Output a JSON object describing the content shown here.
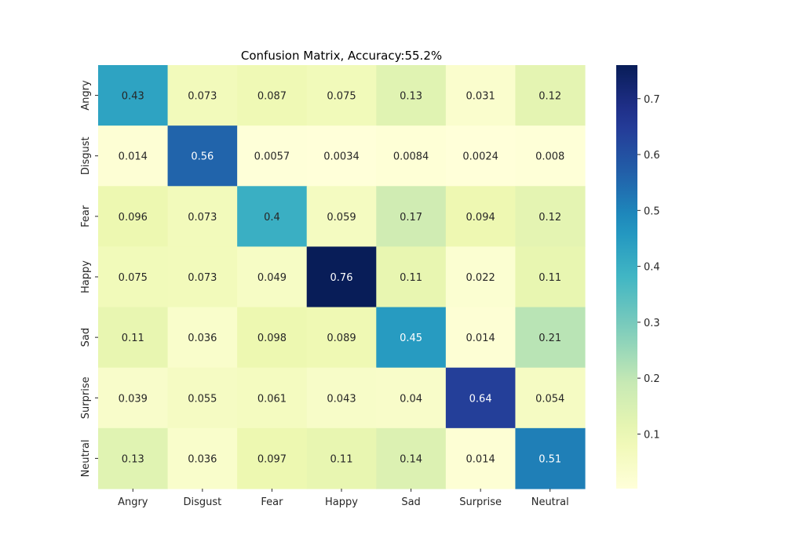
{
  "chart_data": {
    "type": "heatmap",
    "title": "Confusion Matrix, Accuracy:55.2%",
    "xlabel": "",
    "ylabel": "",
    "x_categories": [
      "Angry",
      "Disgust",
      "Fear",
      "Happy",
      "Sad",
      "Surprise",
      "Neutral"
    ],
    "y_categories": [
      "Angry",
      "Disgust",
      "Fear",
      "Happy",
      "Sad",
      "Surprise",
      "Neutral"
    ],
    "values": [
      [
        0.43,
        0.073,
        0.087,
        0.075,
        0.13,
        0.031,
        0.12
      ],
      [
        0.014,
        0.56,
        0.0057,
        0.0034,
        0.0084,
        0.0024,
        0.008
      ],
      [
        0.096,
        0.073,
        0.4,
        0.059,
        0.17,
        0.094,
        0.12
      ],
      [
        0.075,
        0.073,
        0.049,
        0.76,
        0.11,
        0.022,
        0.11
      ],
      [
        0.11,
        0.036,
        0.098,
        0.089,
        0.45,
        0.014,
        0.21
      ],
      [
        0.039,
        0.055,
        0.061,
        0.043,
        0.04,
        0.64,
        0.054
      ],
      [
        0.13,
        0.036,
        0.097,
        0.11,
        0.14,
        0.014,
        0.51
      ]
    ],
    "colormap": "YlGnBu",
    "colorbar": {
      "range": [
        0.0024,
        0.76
      ],
      "ticks": [
        0.1,
        0.2,
        0.3,
        0.4,
        0.5,
        0.6,
        0.7
      ],
      "tick_labels": [
        "0.1",
        "0.2",
        "0.3",
        "0.4",
        "0.5",
        "0.6",
        "0.7"
      ]
    },
    "annotations": true,
    "grid": false
  }
}
